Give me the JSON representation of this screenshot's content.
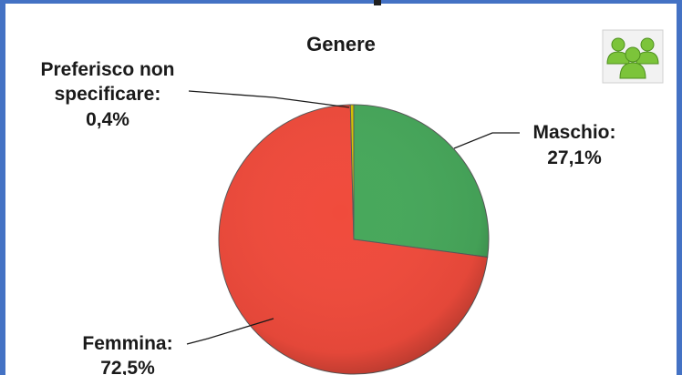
{
  "chart_data": {
    "type": "pie",
    "title": "Genere",
    "slices": [
      {
        "label": "Maschio:",
        "percent_text": "27,1%",
        "value": 27.1,
        "color": "#47a85b"
      },
      {
        "label": "Femmina:",
        "percent_text": "72,5%",
        "value": 72.5,
        "color": "#f04b3c"
      },
      {
        "label_line1": "Preferisco non",
        "label_line2": "specificare:",
        "percent_text": "0,4%",
        "value": 0.4,
        "color": "#d8c400"
      }
    ],
    "start_angle": "12 o'clock, clockwise"
  },
  "icon": {
    "name": "people-group-icon",
    "color": "#7cc43a"
  }
}
